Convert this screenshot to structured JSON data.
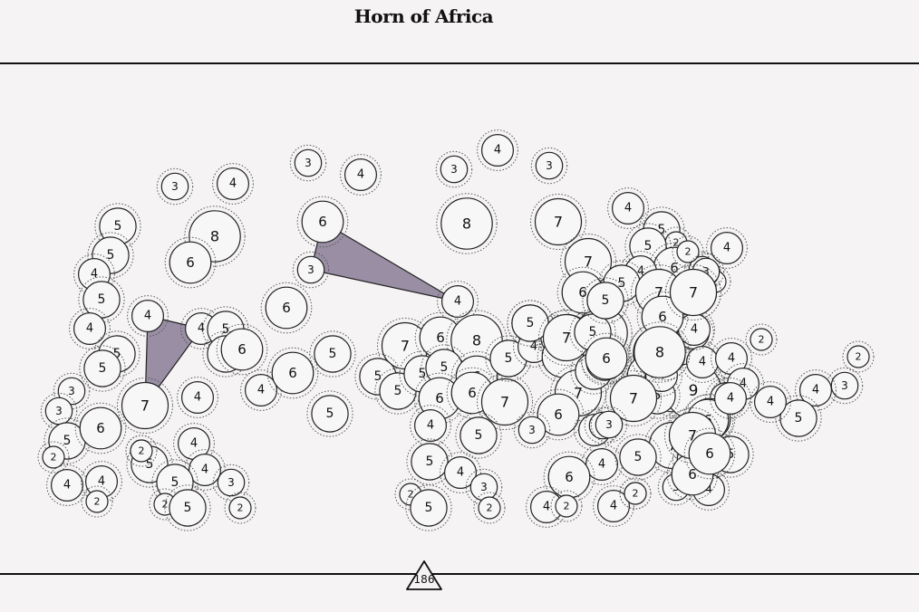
{
  "title": "Horn of Africa",
  "counter": {
    "value": "186"
  },
  "colors": {
    "background": "#f5f3f4",
    "link_fill": "#9a8ea4",
    "stroke": "#222222"
  },
  "links": [
    {
      "from": "n-a",
      "to": "n-b",
      "via": "n-c"
    },
    {
      "from": "n-d",
      "to": "n-e",
      "via": "n-f"
    }
  ],
  "nodes": [
    {
      "id": "n01",
      "v": "3"
    },
    {
      "id": "n02",
      "v": "4"
    },
    {
      "id": "n03",
      "v": "8"
    },
    {
      "id": "n04",
      "v": "6"
    },
    {
      "id": "n05",
      "v": "5"
    },
    {
      "id": "n06",
      "v": "5"
    },
    {
      "id": "n07",
      "v": "4"
    },
    {
      "id": "n08",
      "v": "5"
    },
    {
      "id": "n09",
      "v": "4"
    },
    {
      "id": "n10",
      "v": "5"
    },
    {
      "id": "n11",
      "v": "5"
    },
    {
      "id": "n12",
      "v": "3"
    },
    {
      "id": "n13",
      "v": "3"
    },
    {
      "id": "n14",
      "v": "5"
    },
    {
      "id": "n15",
      "v": "2"
    },
    {
      "id": "n16",
      "v": "4"
    },
    {
      "id": "n17",
      "v": "4"
    },
    {
      "id": "n18",
      "v": "2"
    },
    {
      "id": "n19",
      "v": "6"
    },
    {
      "id": "n-a",
      "v": "4"
    },
    {
      "id": "n-b",
      "v": "7"
    },
    {
      "id": "n-c",
      "v": "4"
    },
    {
      "id": "n22",
      "v": "5"
    },
    {
      "id": "n23",
      "v": "5"
    },
    {
      "id": "n24",
      "v": "6"
    },
    {
      "id": "n25",
      "v": "4"
    },
    {
      "id": "n26",
      "v": "4"
    },
    {
      "id": "n27",
      "v": "2"
    },
    {
      "id": "n28",
      "v": "5"
    },
    {
      "id": "n29",
      "v": "4"
    },
    {
      "id": "n30",
      "v": "5"
    },
    {
      "id": "n31",
      "v": "2"
    },
    {
      "id": "n32",
      "v": "5"
    },
    {
      "id": "n33",
      "v": "3"
    },
    {
      "id": "n34",
      "v": "2"
    },
    {
      "id": "n35",
      "v": "3"
    },
    {
      "id": "n36",
      "v": "4"
    },
    {
      "id": "n-d",
      "v": "6"
    },
    {
      "id": "n-e",
      "v": "3"
    },
    {
      "id": "n39",
      "v": "6"
    },
    {
      "id": "n40",
      "v": "4"
    },
    {
      "id": "n41",
      "v": "6"
    },
    {
      "id": "n42",
      "v": "5"
    },
    {
      "id": "n43",
      "v": "5"
    },
    {
      "id": "n44",
      "v": "3"
    },
    {
      "id": "n45",
      "v": "4"
    },
    {
      "id": "n46",
      "v": "8"
    },
    {
      "id": "n-f",
      "v": "4"
    },
    {
      "id": "n48",
      "v": "7"
    },
    {
      "id": "n49",
      "v": "6"
    },
    {
      "id": "n50",
      "v": "8"
    },
    {
      "id": "n51",
      "v": "5"
    },
    {
      "id": "n52",
      "v": "5"
    },
    {
      "id": "n53",
      "v": "5"
    },
    {
      "id": "n54",
      "v": "5"
    },
    {
      "id": "n55",
      "v": "6"
    },
    {
      "id": "n56",
      "v": "6"
    },
    {
      "id": "n57",
      "v": "6"
    },
    {
      "id": "n58",
      "v": "7"
    },
    {
      "id": "n59",
      "v": "5"
    },
    {
      "id": "n60",
      "v": "4"
    },
    {
      "id": "n61",
      "v": "5"
    },
    {
      "id": "n62",
      "v": "5"
    },
    {
      "id": "n63",
      "v": "4"
    },
    {
      "id": "n64",
      "v": "3"
    },
    {
      "id": "n65",
      "v": "2"
    },
    {
      "id": "n66",
      "v": "5"
    },
    {
      "id": "n67",
      "v": "2"
    },
    {
      "id": "n68",
      "v": "3"
    },
    {
      "id": "n69",
      "v": "7"
    },
    {
      "id": "n70",
      "v": "4"
    },
    {
      "id": "n71",
      "v": "7"
    },
    {
      "id": "n72",
      "v": "5"
    },
    {
      "id": "n73",
      "v": "4"
    },
    {
      "id": "n74",
      "v": "5"
    },
    {
      "id": "n75",
      "v": "8"
    },
    {
      "id": "n76",
      "v": "7"
    },
    {
      "id": "n77",
      "v": "6"
    },
    {
      "id": "n78",
      "v": "5"
    },
    {
      "id": "n79",
      "v": "6"
    },
    {
      "id": "n80",
      "v": "6"
    },
    {
      "id": "n81",
      "v": "7"
    },
    {
      "id": "n82",
      "v": "5"
    },
    {
      "id": "n83",
      "v": "6"
    },
    {
      "id": "n84",
      "v": "4"
    },
    {
      "id": "n85",
      "v": "3"
    },
    {
      "id": "n86",
      "v": "4"
    },
    {
      "id": "n87",
      "v": "6"
    },
    {
      "id": "n88",
      "v": "4"
    },
    {
      "id": "n89",
      "v": "2"
    },
    {
      "id": "n90",
      "v": "4"
    },
    {
      "id": "n91",
      "v": "5"
    },
    {
      "id": "n92",
      "v": "2"
    },
    {
      "id": "n93",
      "v": "5"
    },
    {
      "id": "n94",
      "v": "6"
    },
    {
      "id": "n95",
      "v": "3"
    },
    {
      "id": "n96",
      "v": "2"
    },
    {
      "id": "n97",
      "v": "4"
    },
    {
      "id": "n98",
      "v": "5"
    },
    {
      "id": "n99",
      "v": "7"
    },
    {
      "id": "n100",
      "v": "7"
    },
    {
      "id": "n101",
      "v": "4"
    },
    {
      "id": "n102",
      "v": "8"
    },
    {
      "id": "n103",
      "v": "6"
    },
    {
      "id": "n104",
      "v": "4"
    },
    {
      "id": "n105",
      "v": "6"
    },
    {
      "id": "n106",
      "v": "9"
    },
    {
      "id": "n107",
      "v": "4"
    },
    {
      "id": "n108",
      "v": "4"
    },
    {
      "id": "n109",
      "v": "4"
    },
    {
      "id": "n110",
      "v": "4"
    },
    {
      "id": "n111",
      "v": "2"
    },
    {
      "id": "n112",
      "v": "2"
    },
    {
      "id": "n113",
      "v": "3"
    },
    {
      "id": "n114",
      "v": "4"
    },
    {
      "id": "n115",
      "v": "5"
    },
    {
      "id": "n116",
      "v": "6"
    },
    {
      "id": "n117",
      "v": "7"
    },
    {
      "id": "n118",
      "v": "7"
    },
    {
      "id": "n119",
      "v": "5"
    },
    {
      "id": "n120",
      "v": "3"
    },
    {
      "id": "n121",
      "v": "6"
    },
    {
      "id": "n122",
      "v": "5"
    },
    {
      "id": "n123",
      "v": "3"
    },
    {
      "id": "n124",
      "v": "4"
    },
    {
      "id": "n125",
      "v": "6"
    },
    {
      "id": "n126",
      "v": "4"
    },
    {
      "id": "n127",
      "v": "2"
    },
    {
      "id": "n128",
      "v": "4"
    },
    {
      "id": "n129",
      "v": "2"
    },
    {
      "id": "n130",
      "v": "5"
    },
    {
      "id": "n131",
      "v": "4"
    },
    {
      "id": "n132",
      "v": "5"
    },
    {
      "id": "n133",
      "v": "2"
    },
    {
      "id": "n134",
      "v": "4"
    },
    {
      "id": "n135",
      "v": "5"
    },
    {
      "id": "n136",
      "v": "3"
    },
    {
      "id": "n137",
      "v": "4"
    },
    {
      "id": "n138",
      "v": "7"
    },
    {
      "id": "n139",
      "v": "7"
    },
    {
      "id": "n140",
      "v": "6"
    },
    {
      "id": "n141",
      "v": "5"
    },
    {
      "id": "n142",
      "v": "6"
    },
    {
      "id": "n143",
      "v": "2"
    },
    {
      "id": "n144",
      "v": "3"
    },
    {
      "id": "n145",
      "v": "5"
    },
    {
      "id": "n146",
      "v": "7"
    },
    {
      "id": "n147",
      "v": "6"
    },
    {
      "id": "n148",
      "v": "8"
    },
    {
      "id": "n149",
      "v": "6"
    },
    {
      "id": "n150",
      "v": "7"
    },
    {
      "id": "n151",
      "v": "3"
    },
    {
      "id": "n152",
      "v": "4"
    },
    {
      "id": "n153",
      "v": "6"
    }
  ]
}
